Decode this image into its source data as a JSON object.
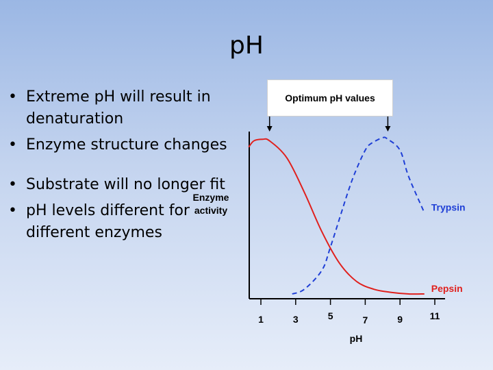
{
  "slide": {
    "title": "pH",
    "bullets": [
      "Extreme pH will result in denaturation",
      "Enzyme structure changes",
      "Substrate will no longer fit",
      "pH levels different for different enzymes"
    ],
    "callout": "Optimum pH values"
  },
  "chart_data": {
    "type": "line",
    "title": "",
    "xlabel": "pH",
    "ylabel": "Enzyme activity",
    "xticks": [
      "1",
      "3",
      "5",
      "7",
      "9",
      "11"
    ],
    "xlim": [
      0,
      11
    ],
    "ylim": [
      0,
      100
    ],
    "grid": false,
    "series": [
      {
        "name": "Trypsin",
        "color": "#1f3fd6",
        "style": "dashed",
        "x": [
          2.8,
          3.5,
          4.5,
          5.0,
          6.0,
          6.5,
          7.0,
          7.3,
          8.0,
          8.3,
          9.0,
          9.5,
          10.4
        ],
        "y": [
          0,
          3,
          15,
          30,
          65,
          80,
          92,
          96,
          100,
          99,
          92,
          75,
          52
        ]
      },
      {
        "name": "Pepsin",
        "color": "#e0201d",
        "style": "solid",
        "x": [
          0.3,
          0.6,
          1.1,
          1.5,
          2.5,
          3.5,
          4.5,
          5.5,
          6.5,
          7.5,
          8.5,
          9.5,
          10.4
        ],
        "y": [
          94,
          98,
          99,
          98,
          87,
          65,
          40,
          20,
          8,
          3,
          1,
          0,
          0
        ]
      }
    ],
    "annotations": [
      {
        "label": "Optimum pH values",
        "x": [
          1.5,
          8.3
        ]
      }
    ]
  }
}
